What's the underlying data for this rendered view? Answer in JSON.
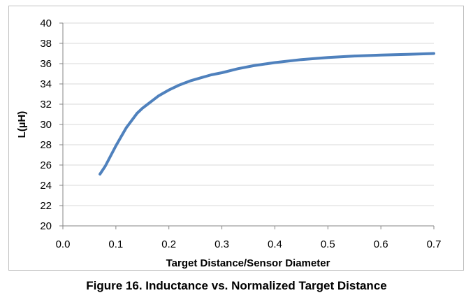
{
  "chart_data": {
    "type": "line",
    "xlabel": "Target Distance/Sensor Diameter",
    "ylabel": "L(µH)",
    "xlim": [
      0.0,
      0.7
    ],
    "ylim": [
      20,
      40
    ],
    "x_ticks": [
      "0.0",
      "0.1",
      "0.2",
      "0.3",
      "0.4",
      "0.5",
      "0.6",
      "0.7"
    ],
    "y_ticks": [
      "20",
      "22",
      "24",
      "26",
      "28",
      "30",
      "32",
      "34",
      "36",
      "38",
      "40"
    ],
    "grid": "horizontal",
    "legend": "none",
    "series": [
      {
        "color": "#4f81bd",
        "x": [
          0.07,
          0.08,
          0.09,
          0.1,
          0.11,
          0.12,
          0.13,
          0.14,
          0.15,
          0.16,
          0.17,
          0.18,
          0.19,
          0.2,
          0.22,
          0.24,
          0.26,
          0.28,
          0.3,
          0.33,
          0.36,
          0.4,
          0.45,
          0.5,
          0.55,
          0.6,
          0.65,
          0.7
        ],
        "y": [
          25.1,
          25.9,
          26.9,
          27.9,
          28.8,
          29.7,
          30.4,
          31.1,
          31.6,
          32.0,
          32.4,
          32.8,
          33.1,
          33.4,
          33.9,
          34.3,
          34.6,
          34.9,
          35.1,
          35.5,
          35.8,
          36.1,
          36.4,
          36.6,
          36.75,
          36.85,
          36.92,
          37.0
        ]
      }
    ]
  },
  "caption": "Figure 16. Inductance vs. Normalized Target Distance"
}
